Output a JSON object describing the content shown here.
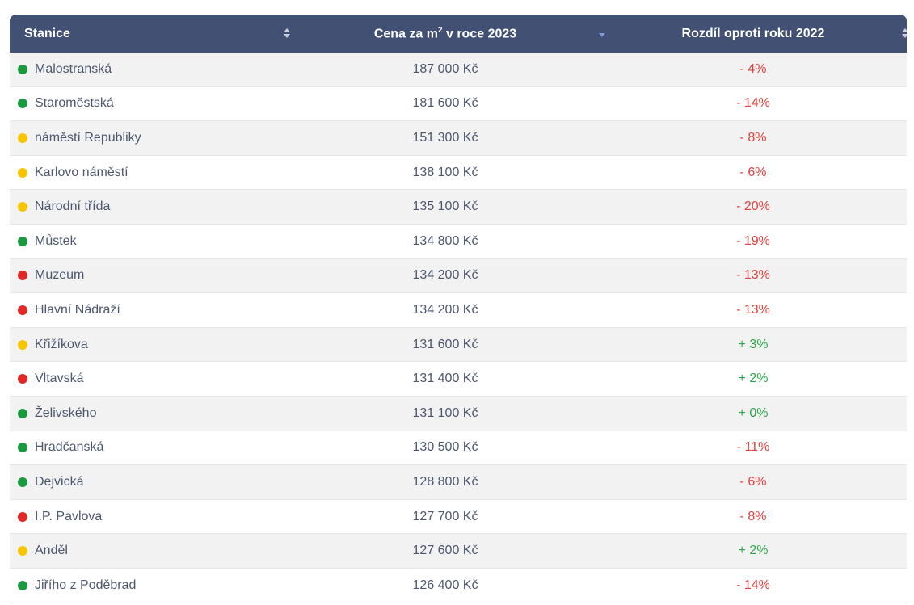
{
  "table": {
    "headers": {
      "station": "Stanice",
      "price_prefix": "Cena za m",
      "price_sup": "2",
      "price_suffix": " v roce 2023",
      "diff": "Rozdíl oproti roku 2022"
    },
    "colors": {
      "green": "#1a9a3f",
      "yellow": "#f7c600",
      "red": "#e22727",
      "header_bg": "#415073"
    },
    "rows": [
      {
        "station": "Malostranská",
        "status": "green",
        "price": "187 000 Kč",
        "diff": "- 4%",
        "trend": "neg"
      },
      {
        "station": "Staroměstská",
        "status": "green",
        "price": "181 600 Kč",
        "diff": "- 14%",
        "trend": "neg"
      },
      {
        "station": "náměstí Republiky",
        "status": "yellow",
        "price": "151 300 Kč",
        "diff": "- 8%",
        "trend": "neg"
      },
      {
        "station": "Karlovo náměstí",
        "status": "yellow",
        "price": "138 100 Kč",
        "diff": "- 6%",
        "trend": "neg"
      },
      {
        "station": "Národní třída",
        "status": "yellow",
        "price": "135 100 Kč",
        "diff": "- 20%",
        "trend": "neg"
      },
      {
        "station": "Můstek",
        "status": "green",
        "price": "134 800 Kč",
        "diff": "- 19%",
        "trend": "neg"
      },
      {
        "station": "Muzeum",
        "status": "red",
        "price": "134 200 Kč",
        "diff": "- 13%",
        "trend": "neg"
      },
      {
        "station": "Hlavní Nádraží",
        "status": "red",
        "price": "134 200 Kč",
        "diff": "- 13%",
        "trend": "neg"
      },
      {
        "station": "Křižíkova",
        "status": "yellow",
        "price": "131 600 Kč",
        "diff": "+ 3%",
        "trend": "pos"
      },
      {
        "station": "Vltavská",
        "status": "red",
        "price": "131 400 Kč",
        "diff": "+ 2%",
        "trend": "pos"
      },
      {
        "station": "Želivského",
        "status": "green",
        "price": "131 100 Kč",
        "diff": "+ 0%",
        "trend": "pos"
      },
      {
        "station": "Hradčanská",
        "status": "green",
        "price": "130 500 Kč",
        "diff": "- 11%",
        "trend": "neg"
      },
      {
        "station": "Dejvická",
        "status": "green",
        "price": "128 800 Kč",
        "diff": "- 6%",
        "trend": "neg"
      },
      {
        "station": "I.P. Pavlova",
        "status": "red",
        "price": "127 700 Kč",
        "diff": "- 8%",
        "trend": "neg"
      },
      {
        "station": "Anděl",
        "status": "yellow",
        "price": "127 600 Kč",
        "diff": "+ 2%",
        "trend": "pos"
      },
      {
        "station": "Jiřího z Poděbrad",
        "status": "green",
        "price": "126 400 Kč",
        "diff": "- 14%",
        "trend": "neg"
      }
    ]
  }
}
